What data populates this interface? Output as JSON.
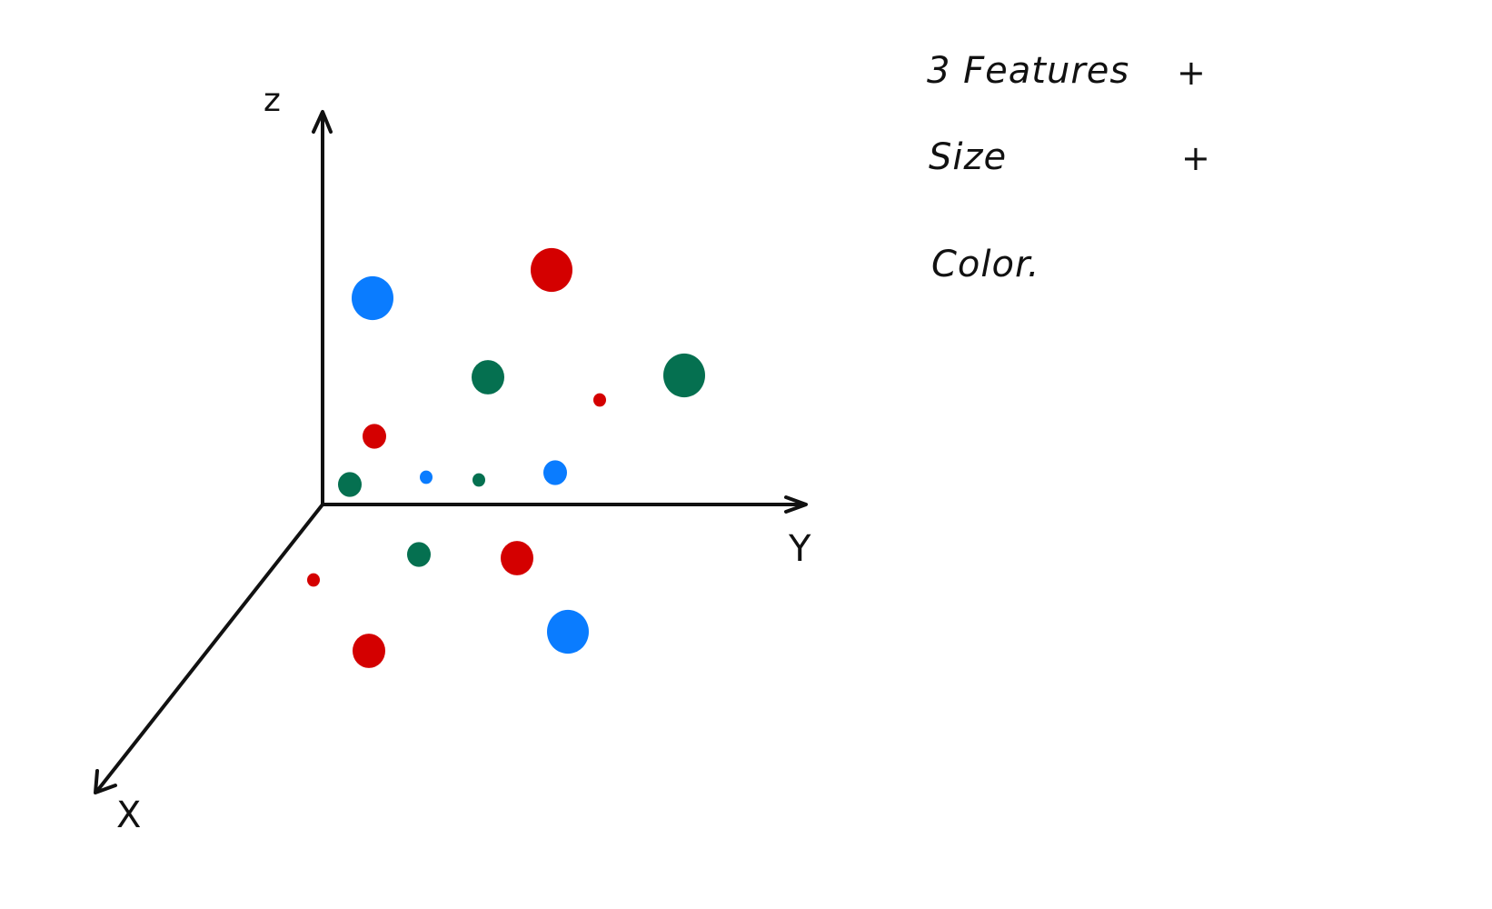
{
  "axes": {
    "x_label": "X",
    "y_label": "Y",
    "z_label": "z"
  },
  "notes": {
    "line1": "3 Features",
    "line1_mark": "+",
    "line2": "Size",
    "line2_mark": "+",
    "line3": "Color."
  },
  "colors": {
    "red": "#d40000",
    "blue": "#0a7cff",
    "green": "#057050",
    "ink": "#111111"
  },
  "chart_data": {
    "type": "scatter",
    "title": "",
    "xlabel": "X",
    "ylabel": "Y",
    "zlabel": "z",
    "points": [
      {
        "color": "blue",
        "size": "large"
      },
      {
        "color": "red",
        "size": "large"
      },
      {
        "color": "green",
        "size": "medium"
      },
      {
        "color": "green",
        "size": "large"
      },
      {
        "color": "red",
        "size": "tiny"
      },
      {
        "color": "red",
        "size": "small"
      },
      {
        "color": "green",
        "size": "small"
      },
      {
        "color": "blue",
        "size": "tiny"
      },
      {
        "color": "green",
        "size": "tiny"
      },
      {
        "color": "blue",
        "size": "small"
      },
      {
        "color": "green",
        "size": "small"
      },
      {
        "color": "red",
        "size": "medium"
      },
      {
        "color": "red",
        "size": "tiny"
      },
      {
        "color": "red",
        "size": "medium"
      },
      {
        "color": "blue",
        "size": "large"
      }
    ]
  }
}
